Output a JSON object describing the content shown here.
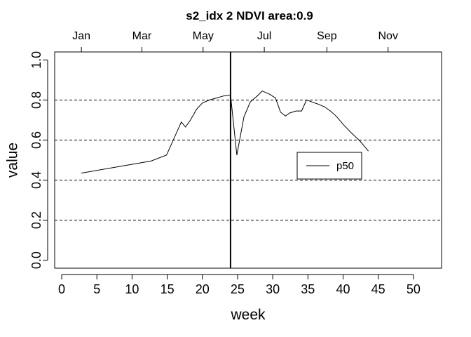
{
  "chart_data": {
    "type": "line",
    "title": "s2_idx 2 NDVI area:0.9",
    "xlabel": "week",
    "ylabel": "value",
    "xlim": [
      -1,
      54
    ],
    "ylim": [
      -0.04,
      1.04
    ],
    "x_ticks": [
      0,
      5,
      10,
      15,
      20,
      25,
      30,
      35,
      40,
      45,
      50
    ],
    "y_ticks": [
      "0.0",
      "0.2",
      "0.4",
      "0.6",
      "0.8",
      "1.0"
    ],
    "y_tick_values": [
      0.0,
      0.2,
      0.4,
      0.6,
      0.8,
      1.0
    ],
    "hlines": [
      0.2,
      0.4,
      0.6,
      0.8
    ],
    "vline": 24,
    "top_axis": {
      "labels": [
        "Jan",
        "Mar",
        "May",
        "Jul",
        "Sep",
        "Nov"
      ],
      "weeks": [
        2.8,
        11.4,
        20.1,
        28.8,
        37.7,
        46.4
      ]
    },
    "legend": {
      "position": "center-right"
    },
    "series": [
      {
        "name": "p50",
        "color": "#000000",
        "x": [
          2.8,
          12.7,
          14.9,
          17.0,
          17.6,
          18.3,
          19.2,
          20.0,
          21.0,
          22.0,
          23.0,
          24.0,
          24.9,
          25.9,
          26.8,
          27.8,
          28.5,
          29.5,
          30.4,
          31.1,
          31.8,
          32.4,
          33.3,
          34.1,
          34.8,
          35.6,
          36.4,
          37.4,
          38.2,
          39.0,
          40.1,
          41.2,
          42.4,
          43.6
        ],
        "y": [
          0.435,
          0.495,
          0.525,
          0.69,
          0.665,
          0.7,
          0.755,
          0.785,
          0.8,
          0.81,
          0.82,
          0.825,
          0.525,
          0.715,
          0.79,
          0.82,
          0.845,
          0.83,
          0.81,
          0.74,
          0.72,
          0.735,
          0.745,
          0.745,
          0.8,
          0.79,
          0.78,
          0.765,
          0.745,
          0.72,
          0.675,
          0.635,
          0.595,
          0.545
        ]
      }
    ]
  }
}
